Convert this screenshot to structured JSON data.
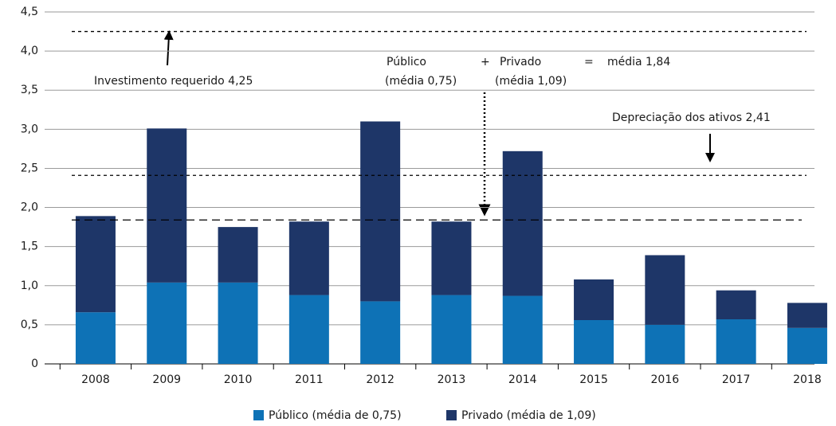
{
  "chart_data": {
    "type": "stacked_bar",
    "categories": [
      "2008",
      "2009",
      "2010",
      "2011",
      "2012",
      "2013",
      "2014",
      "2015",
      "2016",
      "2017",
      "2018"
    ],
    "series": [
      {
        "name": "Público (média de 0,75)",
        "color": "#0e72b6",
        "values": [
          0.66,
          1.04,
          1.04,
          0.88,
          0.8,
          0.88,
          0.87,
          0.56,
          0.5,
          0.57,
          0.46
        ]
      },
      {
        "name": "Privado (média de 1,09)",
        "color": "#1e3668",
        "values": [
          1.23,
          1.97,
          0.71,
          0.94,
          2.3,
          0.94,
          1.85,
          0.52,
          0.89,
          0.37,
          0.32
        ]
      }
    ],
    "ylim": [
      0,
      4.5
    ],
    "yticks": [
      0,
      {
        "value": 0.5,
        "label": "0,5"
      },
      {
        "value": 1,
        "label": "1,0"
      },
      {
        "value": 1.5,
        "label": "1,5"
      },
      {
        "value": 2,
        "label": "2,0"
      },
      {
        "value": 2.5,
        "label": "2,5"
      },
      {
        "value": 3,
        "label": "3,0"
      },
      {
        "value": 3.5,
        "label": "3,5"
      },
      {
        "value": 4,
        "label": "4,0"
      },
      {
        "value": 4.5,
        "label": "4,5"
      }
    ],
    "grid": true,
    "reference_lines": [
      {
        "value": 4.25,
        "label": "Investimento requerido 4,25"
      },
      {
        "value": 2.41,
        "label": "Depreciação dos ativos 2,41"
      },
      {
        "value": 1.84,
        "label": "média 1,84"
      }
    ],
    "annotations": [
      "Público",
      "(média 0,75)",
      "+",
      "Privado",
      "(média 1,09)",
      "="
    ],
    "legend": "bottom"
  }
}
